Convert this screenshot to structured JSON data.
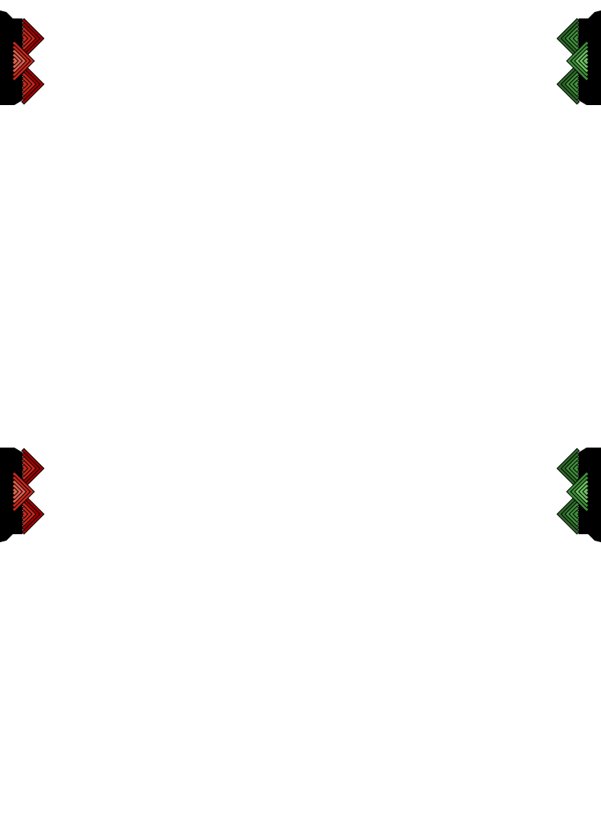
{
  "ornaments": [
    {
      "id": "top-left",
      "color_dark": "#a00000",
      "color_mid": "#c8281c",
      "color_light": "#e06050"
    },
    {
      "id": "bottom-left",
      "color_dark": "#a00000",
      "color_mid": "#c8281c",
      "color_light": "#e06050"
    },
    {
      "id": "top-right",
      "color_dark": "#2e6b2a",
      "color_mid": "#3f8f3a",
      "color_light": "#6cc060"
    },
    {
      "id": "bottom-right",
      "color_dark": "#2e6b2a",
      "color_mid": "#3f8f3a",
      "color_light": "#6cc060"
    }
  ]
}
